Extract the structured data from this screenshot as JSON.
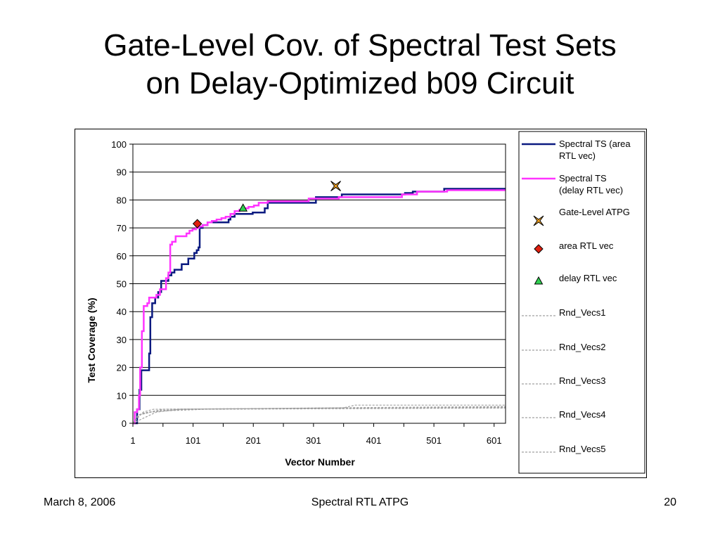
{
  "slide": {
    "title_line1": "Gate-Level Cov. of Spectral Test Sets",
    "title_line2": "on Delay-Optimized b09 Circuit",
    "footer_date": "March 8, 2006",
    "footer_center": "Spectral RTL ATPG",
    "page_number": "20"
  },
  "chart_data": {
    "type": "line",
    "xlabel": "Vector Number",
    "ylabel": "Test Coverage (%)",
    "xlim": [
      1,
      620
    ],
    "ylim": [
      0,
      100
    ],
    "x_ticks": [
      1,
      101,
      201,
      301,
      401,
      501,
      601
    ],
    "y_ticks": [
      0,
      10,
      20,
      30,
      40,
      50,
      60,
      70,
      80,
      90,
      100
    ],
    "grid": "horizontal",
    "legend_position": "right",
    "series": [
      {
        "name": "Spectral TS (area RTL vec)",
        "style": "step-line",
        "color": "#0a1a80",
        "points": [
          [
            1,
            0
          ],
          [
            8,
            5
          ],
          [
            12,
            12
          ],
          [
            15,
            19
          ],
          [
            26,
            19
          ],
          [
            28,
            25
          ],
          [
            30,
            38
          ],
          [
            33,
            43
          ],
          [
            38,
            45
          ],
          [
            43,
            47
          ],
          [
            48,
            51
          ],
          [
            56,
            51
          ],
          [
            60,
            53
          ],
          [
            65,
            54
          ],
          [
            70,
            55
          ],
          [
            77,
            55
          ],
          [
            82,
            57
          ],
          [
            90,
            57
          ],
          [
            93,
            59
          ],
          [
            100,
            59
          ],
          [
            103,
            61
          ],
          [
            107,
            62
          ],
          [
            110,
            63
          ],
          [
            112,
            70
          ],
          [
            117,
            71
          ],
          [
            125,
            72
          ],
          [
            155,
            72
          ],
          [
            160,
            73
          ],
          [
            163,
            74
          ],
          [
            170,
            75
          ],
          [
            196,
            75
          ],
          [
            200,
            75.5
          ],
          [
            215,
            75.5
          ],
          [
            220,
            77
          ],
          [
            225,
            79
          ],
          [
            302,
            79
          ],
          [
            305,
            81
          ],
          [
            345,
            81
          ],
          [
            348,
            82
          ],
          [
            450,
            82
          ],
          [
            453,
            82.5
          ],
          [
            463,
            82.5
          ],
          [
            466,
            83
          ],
          [
            515,
            83
          ],
          [
            518,
            84
          ],
          [
            620,
            84
          ]
        ]
      },
      {
        "name": "Spectral TS (delay RTL vec)",
        "style": "step-line",
        "color": "#ff33ff",
        "points": [
          [
            1,
            0
          ],
          [
            4,
            4
          ],
          [
            8,
            5
          ],
          [
            11,
            10
          ],
          [
            13,
            20
          ],
          [
            16,
            33
          ],
          [
            19,
            42
          ],
          [
            25,
            43
          ],
          [
            28,
            45
          ],
          [
            36,
            45
          ],
          [
            40,
            46
          ],
          [
            46,
            48
          ],
          [
            52,
            48
          ],
          [
            56,
            52
          ],
          [
            60,
            54
          ],
          [
            63,
            64
          ],
          [
            66,
            65
          ],
          [
            72,
            67
          ],
          [
            84,
            67
          ],
          [
            90,
            68
          ],
          [
            95,
            69
          ],
          [
            100,
            69.5
          ],
          [
            106,
            70
          ],
          [
            111,
            70.5
          ],
          [
            117,
            71
          ],
          [
            125,
            72
          ],
          [
            132,
            72.5
          ],
          [
            140,
            73
          ],
          [
            148,
            73.5
          ],
          [
            155,
            74
          ],
          [
            163,
            75
          ],
          [
            170,
            76
          ],
          [
            178,
            76.5
          ],
          [
            185,
            77
          ],
          [
            193,
            77.5
          ],
          [
            202,
            78
          ],
          [
            210,
            79
          ],
          [
            225,
            79.5
          ],
          [
            290,
            79.5
          ],
          [
            293,
            80.5
          ],
          [
            340,
            80.5
          ],
          [
            343,
            81
          ],
          [
            445,
            81
          ],
          [
            448,
            82
          ],
          [
            470,
            82
          ],
          [
            473,
            83
          ],
          [
            520,
            83
          ],
          [
            523,
            83.5
          ],
          [
            620,
            83.5
          ]
        ]
      },
      {
        "name": "Gate-Level ATPG",
        "style": "marker",
        "marker": "star-x",
        "color": "#f0a020",
        "points": [
          [
            338,
            85
          ]
        ]
      },
      {
        "name": "area RTL vec",
        "style": "marker",
        "marker": "diamond",
        "color": "#e02010",
        "points": [
          [
            108,
            71.5
          ]
        ]
      },
      {
        "name": "delay RTL vec",
        "style": "marker",
        "marker": "triangle",
        "color": "#30d050",
        "points": [
          [
            184,
            77
          ]
        ]
      },
      {
        "name": "Rnd_Vecs1",
        "style": "dashed-line",
        "color": "#a0a0a0",
        "points": [
          [
            1,
            0
          ],
          [
            10,
            3
          ],
          [
            30,
            4
          ],
          [
            60,
            4.5
          ],
          [
            120,
            5
          ],
          [
            300,
            5.2
          ],
          [
            620,
            5.5
          ]
        ]
      },
      {
        "name": "Rnd_Vecs2",
        "style": "dashed-line",
        "color": "#a0a0a0",
        "points": [
          [
            1,
            0
          ],
          [
            15,
            3.5
          ],
          [
            40,
            4.5
          ],
          [
            100,
            5
          ],
          [
            300,
            5.5
          ],
          [
            620,
            6
          ]
        ]
      },
      {
        "name": "Rnd_Vecs3",
        "style": "dashed-line",
        "color": "#a0a0a0",
        "points": [
          [
            1,
            0
          ],
          [
            20,
            2
          ],
          [
            40,
            4
          ],
          [
            80,
            5
          ],
          [
            350,
            5.5
          ],
          [
            370,
            6.5
          ],
          [
            620,
            6.5
          ]
        ]
      },
      {
        "name": "Rnd_Vecs4",
        "style": "dashed-line",
        "color": "#a0a0a0",
        "points": [
          [
            1,
            0
          ],
          [
            12,
            3
          ],
          [
            50,
            5
          ],
          [
            150,
            5.2
          ],
          [
            400,
            5.5
          ],
          [
            620,
            5.8
          ]
        ]
      },
      {
        "name": "Rnd_Vecs5",
        "style": "dashed-line",
        "color": "#a0a0a0",
        "points": [
          [
            1,
            0
          ],
          [
            18,
            4
          ],
          [
            35,
            5
          ],
          [
            200,
            5.3
          ],
          [
            620,
            5.5
          ]
        ]
      }
    ]
  }
}
